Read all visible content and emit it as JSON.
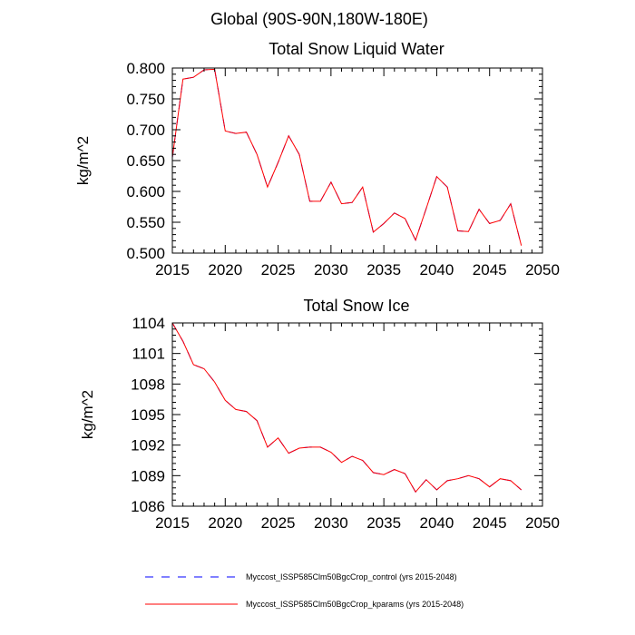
{
  "figure": {
    "suptitle": "Global (90S-90N,180W-180E)"
  },
  "legend": [
    {
      "label": "Myccost_ISSP585Clm50BgcCrop_control (yrs 2015-2048)",
      "color": "#0000ff",
      "dash": "dashed"
    },
    {
      "label": "Myccost_ISSP585Clm50BgcCrop_kparams (yrs 2015-2048)",
      "color": "#ff0000",
      "dash": "solid"
    }
  ],
  "chart_data": [
    {
      "type": "line",
      "title": "Total Snow Liquid Water",
      "ylabel": "kg/m^2",
      "xlim": [
        2015,
        2050
      ],
      "ylim": [
        0.5,
        0.8
      ],
      "xticks": [
        2015,
        2020,
        2025,
        2030,
        2035,
        2040,
        2045,
        2050
      ],
      "xtick_labels": [
        "2015",
        "2020",
        "2025",
        "2030",
        "2035",
        "2040",
        "2045",
        "2050"
      ],
      "yticks": [
        0.5,
        0.55,
        0.6,
        0.65,
        0.7,
        0.75,
        0.8
      ],
      "ytick_labels": [
        "0.500",
        "0.550",
        "0.600",
        "0.650",
        "0.700",
        "0.750",
        "0.800"
      ],
      "x": [
        2015,
        2016,
        2017,
        2018,
        2019,
        2020,
        2021,
        2022,
        2023,
        2024,
        2025,
        2026,
        2027,
        2028,
        2029,
        2030,
        2031,
        2032,
        2033,
        2034,
        2035,
        2036,
        2037,
        2038,
        2039,
        2040,
        2041,
        2042,
        2043,
        2044,
        2045,
        2046,
        2047,
        2048
      ],
      "series": [
        {
          "name": "Myccost_ISSP585Clm50BgcCrop_control (yrs 2015-2048)",
          "color": "#0000ff",
          "dash": "dashed",
          "values": [
            0.655,
            0.782,
            0.785,
            0.797,
            0.798,
            0.698,
            0.694,
            0.696,
            0.66,
            0.607,
            0.647,
            0.69,
            0.66,
            0.584,
            0.584,
            0.615,
            0.58,
            0.582,
            0.607,
            0.534,
            0.548,
            0.565,
            0.556,
            0.521,
            0.572,
            0.624,
            0.607,
            0.536,
            0.535,
            0.571,
            0.548,
            0.553,
            0.58,
            0.512
          ]
        },
        {
          "name": "Myccost_ISSP585Clm50BgcCrop_kparams (yrs 2015-2048)",
          "color": "#ff0000",
          "dash": "solid",
          "values": [
            0.655,
            0.782,
            0.785,
            0.797,
            0.798,
            0.698,
            0.694,
            0.696,
            0.66,
            0.607,
            0.647,
            0.69,
            0.66,
            0.584,
            0.584,
            0.615,
            0.58,
            0.582,
            0.607,
            0.534,
            0.548,
            0.565,
            0.556,
            0.521,
            0.572,
            0.624,
            0.607,
            0.536,
            0.535,
            0.571,
            0.548,
            0.553,
            0.58,
            0.512
          ]
        }
      ]
    },
    {
      "type": "line",
      "title": "Total Snow Ice",
      "ylabel": "kg/m^2",
      "xlim": [
        2015,
        2050
      ],
      "ylim": [
        1086,
        1104
      ],
      "xticks": [
        2015,
        2020,
        2025,
        2030,
        2035,
        2040,
        2045,
        2050
      ],
      "xtick_labels": [
        "2015",
        "2020",
        "2025",
        "2030",
        "2035",
        "2040",
        "2045",
        "2050"
      ],
      "yticks": [
        1086,
        1089,
        1092,
        1095,
        1098,
        1101,
        1104
      ],
      "ytick_labels": [
        "1086",
        "1089",
        "1092",
        "1095",
        "1098",
        "1101",
        "1104"
      ],
      "x": [
        2015,
        2016,
        2017,
        2018,
        2019,
        2020,
        2021,
        2022,
        2023,
        2024,
        2025,
        2026,
        2027,
        2028,
        2029,
        2030,
        2031,
        2032,
        2033,
        2034,
        2035,
        2036,
        2037,
        2038,
        2039,
        2040,
        2041,
        2042,
        2043,
        2044,
        2045,
        2046,
        2047,
        2048
      ],
      "series": [
        {
          "name": "Myccost_ISSP585Clm50BgcCrop_control (yrs 2015-2048)",
          "color": "#0000ff",
          "dash": "dashed",
          "values": [
            1104.0,
            1102.2,
            1099.9,
            1099.5,
            1098.2,
            1096.4,
            1095.5,
            1095.3,
            1094.4,
            1091.8,
            1092.7,
            1091.2,
            1091.7,
            1091.8,
            1091.8,
            1091.3,
            1090.3,
            1090.9,
            1090.5,
            1089.3,
            1089.1,
            1089.6,
            1089.2,
            1087.4,
            1088.6,
            1087.6,
            1088.5,
            1088.7,
            1089.0,
            1088.7,
            1087.9,
            1088.7,
            1088.5,
            1087.6
          ]
        },
        {
          "name": "Myccost_ISSP585Clm50BgcCrop_kparams (yrs 2015-2048)",
          "color": "#ff0000",
          "dash": "solid",
          "values": [
            1104.0,
            1102.2,
            1099.9,
            1099.5,
            1098.2,
            1096.4,
            1095.5,
            1095.3,
            1094.4,
            1091.8,
            1092.7,
            1091.2,
            1091.7,
            1091.8,
            1091.8,
            1091.3,
            1090.3,
            1090.9,
            1090.5,
            1089.3,
            1089.1,
            1089.6,
            1089.2,
            1087.4,
            1088.6,
            1087.6,
            1088.5,
            1088.7,
            1089.0,
            1088.7,
            1087.9,
            1088.7,
            1088.5,
            1087.6
          ]
        }
      ]
    }
  ]
}
